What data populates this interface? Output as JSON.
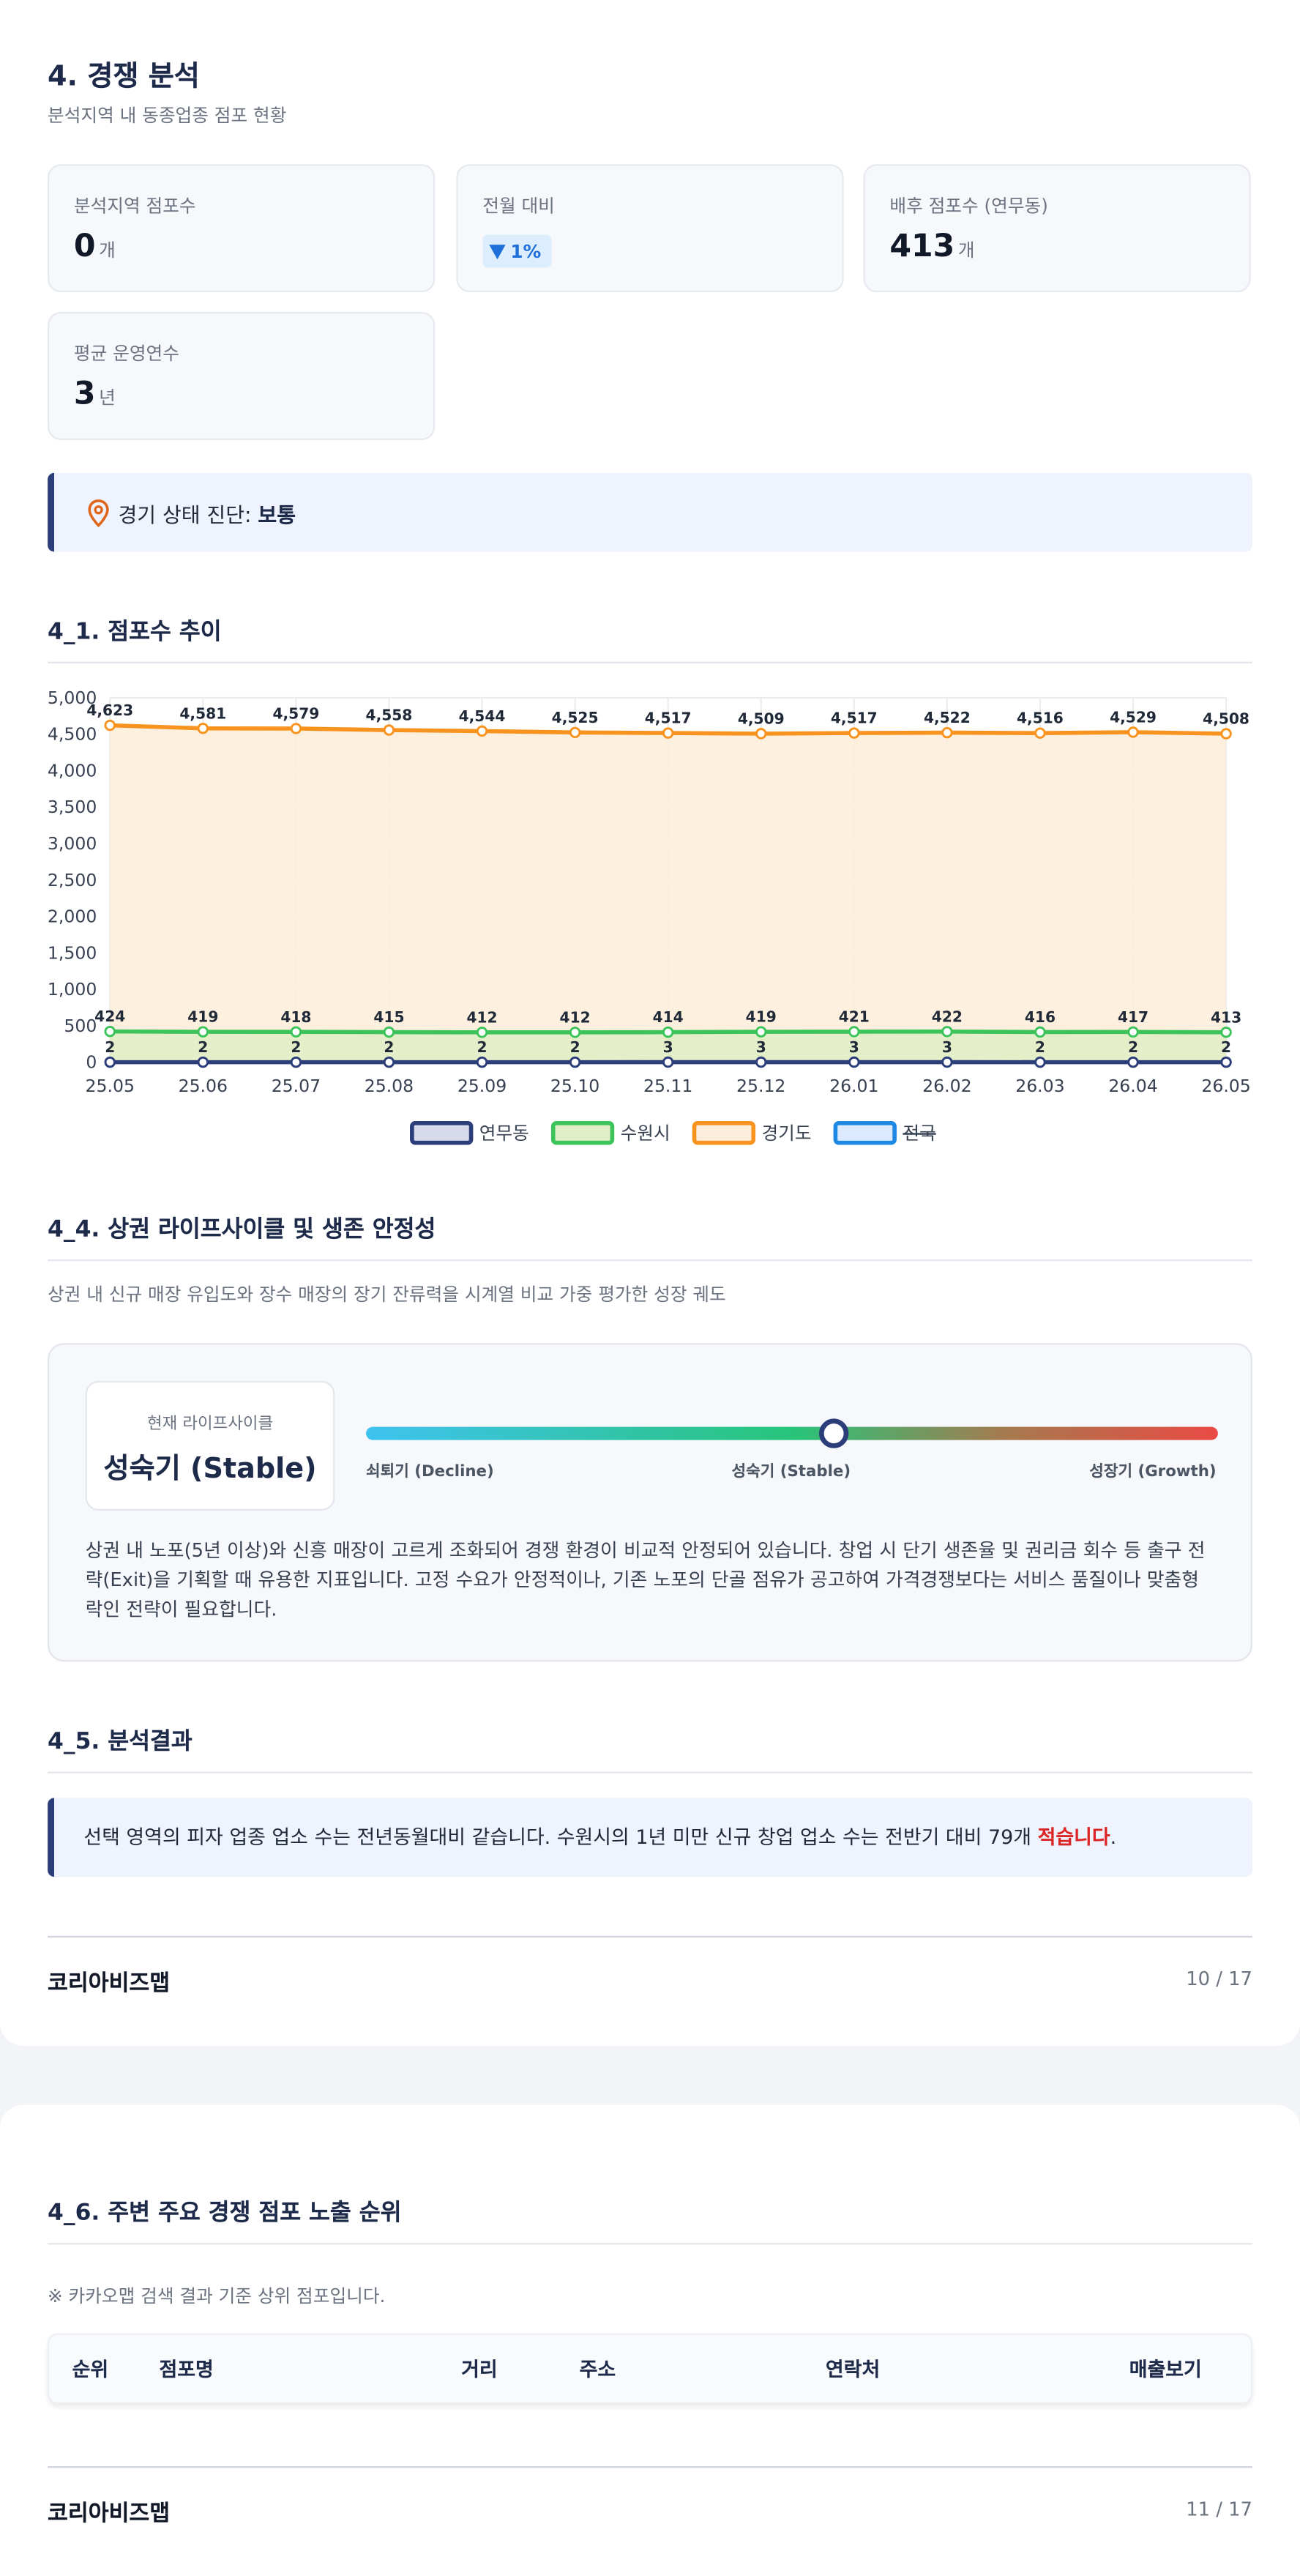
{
  "section": {
    "title": "4. 경쟁 분석",
    "subtitle": "분석지역 내 동종업종 점포 현황"
  },
  "stats": [
    {
      "label": "분석지역 점포수",
      "value": "0",
      "unit": "개"
    },
    {
      "label": "전월 대비",
      "value": "1%"
    },
    {
      "label": "배후 점포수 (연무동)",
      "value": "413",
      "unit": "개"
    },
    {
      "label": "평균 운영연수",
      "value": "3",
      "unit": "년"
    }
  ],
  "diagnosis": {
    "label": "경기 상태 진단:",
    "value": "보통"
  },
  "chart_section_title": "4_1. 점포수 추이",
  "chart_data": {
    "type": "line",
    "x": [
      "25.05",
      "25.06",
      "25.07",
      "25.08",
      "25.09",
      "25.10",
      "25.11",
      "25.12",
      "26.01",
      "26.02",
      "26.03",
      "26.04",
      "26.05"
    ],
    "series": [
      {
        "name": "연무동",
        "color": "#2c3e7a",
        "fill": "#d6d9ea",
        "values": [
          2,
          2,
          2,
          2,
          2,
          2,
          3,
          3,
          3,
          3,
          2,
          2,
          2
        ]
      },
      {
        "name": "수원시",
        "color": "#3cc45a",
        "fill": "#e1edc7",
        "values": [
          424,
          419,
          418,
          415,
          412,
          412,
          414,
          419,
          421,
          422,
          416,
          417,
          413
        ]
      },
      {
        "name": "경기도",
        "color": "#f7931e",
        "fill": "#fdeedb",
        "values": [
          4623,
          4581,
          4579,
          4558,
          4544,
          4525,
          4517,
          4509,
          4517,
          4522,
          4516,
          4529,
          4508
        ],
        "value_labels": [
          "4,623",
          "4,581",
          "4,579",
          "4,558",
          "4,544",
          "4,525",
          "4,517",
          "4,509",
          "4,517",
          "4,522",
          "4,516",
          "4,529",
          "4,508"
        ]
      },
      {
        "name": "전국",
        "color": "#1e88e5",
        "fill": "#dbeafe",
        "hidden": true,
        "values": [
          null,
          null,
          null,
          null,
          null,
          null,
          null,
          null,
          null,
          null,
          null,
          null,
          null
        ]
      }
    ],
    "ylim": [
      0,
      5000
    ],
    "yticks": [
      0,
      500,
      {
        "value": 1000,
        "label": "1,000"
      },
      {
        "value": 1500,
        "label": "1,500"
      },
      {
        "value": 2000,
        "label": "2,000"
      },
      {
        "value": 2500,
        "label": "2,500"
      },
      {
        "value": 3000,
        "label": "3,000"
      },
      {
        "value": 3500,
        "label": "3,500"
      },
      {
        "value": 4000,
        "label": "4,000"
      },
      {
        "value": 4500,
        "label": "4,500"
      },
      {
        "value": 5000,
        "label": "5,000"
      }
    ],
    "grid": true,
    "legend": "bottom"
  },
  "lifecycle": {
    "title": "4_4. 상권 라이프사이클 및 생존 안정성",
    "subtitle": "상권 내 신규 매장 유입도와 장수 매장의 장기 잔류력을 시계열 비교 가중 평가한 성장 궤도",
    "current_label": "현재 라이프사이클",
    "current_value": "성숙기 (Stable)",
    "stages": [
      "쇠퇴기 (Decline)",
      "성숙기 (Stable)",
      "성장기 (Growth)"
    ],
    "description": "상권 내 노포(5년 이상)와 신흥 매장이 고르게 조화되어 경쟁 환경이 비교적 안정되어 있습니다. 창업 시 단기 생존율 및 권리금 회수 등 출구 전략(Exit)을 기획할 때 유용한 지표입니다. 고정 수요가 안정적이나, 기존 노포의 단골 점유가 공고하여 가격경쟁보다는 서비스 품질이나 맞춤형 락인 전략이 필요합니다."
  },
  "result": {
    "title": "4_5. 분석결과",
    "text": "선택 영역의 피자 업종 업소 수는 전년동월대비 같습니다. 수원시의 1년 미만 신규 창업 업소 수는 전반기 대비 79개",
    "emphasis": "적습니다",
    "end": "."
  },
  "ranking": {
    "title": "4_6. 주변 주요 경쟁 점포 노출 순위",
    "note": "※ 카카오맵 검색 결과 기준 상위 점포입니다.",
    "columns": [
      "순위",
      "점포명",
      "거리",
      "주소",
      "연락처",
      "매출보기"
    ]
  },
  "footers": [
    {
      "brand": "코리아비즈맵",
      "page": "10 / 17"
    },
    {
      "brand": "코리아비즈맵",
      "page": "11 / 17"
    }
  ]
}
